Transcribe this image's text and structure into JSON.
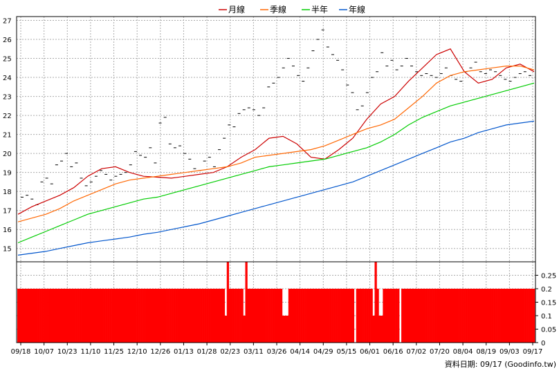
{
  "legend": [
    {
      "label": "月線",
      "color": "#cc0000"
    },
    {
      "label": "季線",
      "color": "#ff6600"
    },
    {
      "label": "半年",
      "color": "#00cc00"
    },
    {
      "label": "年線",
      "color": "#0055cc"
    }
  ],
  "footer": "資料日期: 09/17  (Goodinfo.tw)",
  "chart_data": [
    {
      "type": "line",
      "name": "price-panel",
      "x_ticks": [
        "09/18",
        "10/07",
        "10/23",
        "11/10",
        "11/25",
        "12/10",
        "12/26",
        "01/13",
        "01/28",
        "02/23",
        "03/11",
        "03/26",
        "04/14",
        "04/29",
        "05/15",
        "06/01",
        "06/16",
        "07/02",
        "07/20",
        "08/04",
        "08/19",
        "09/03",
        "09/17"
      ],
      "y_ticks": [
        15,
        16,
        17,
        18,
        19,
        20,
        21,
        22,
        23,
        24,
        25,
        26,
        27
      ],
      "ylim": [
        14.3,
        27.2
      ],
      "grid": true,
      "legend_position": "top-center",
      "series": [
        {
          "name": "月線",
          "color": "#cc0000",
          "values": [
            16.8,
            17.2,
            17.5,
            17.8,
            18.2,
            18.8,
            19.2,
            19.3,
            19.0,
            18.8,
            18.75,
            18.7,
            18.8,
            18.9,
            19.0,
            19.3,
            19.8,
            20.2,
            20.8,
            20.9,
            20.5,
            19.8,
            19.7,
            20.2,
            20.8,
            21.8,
            22.6,
            23.0,
            23.8,
            24.5,
            25.2,
            25.5,
            24.3,
            23.7,
            23.9,
            24.5,
            24.7,
            24.3
          ]
        },
        {
          "name": "季線",
          "color": "#ff6600",
          "values": [
            16.4,
            16.6,
            16.8,
            17.1,
            17.5,
            17.8,
            18.1,
            18.4,
            18.6,
            18.7,
            18.8,
            18.9,
            19.0,
            19.1,
            19.2,
            19.3,
            19.5,
            19.8,
            19.9,
            20.0,
            20.1,
            20.2,
            20.4,
            20.7,
            21.0,
            21.3,
            21.5,
            21.8,
            22.4,
            23.0,
            23.7,
            24.1,
            24.3,
            24.4,
            24.5,
            24.6,
            24.6,
            24.4
          ]
        },
        {
          "name": "半年",
          "color": "#00cc00",
          "values": [
            15.3,
            15.6,
            15.9,
            16.2,
            16.5,
            16.8,
            17.0,
            17.2,
            17.4,
            17.6,
            17.7,
            17.9,
            18.1,
            18.3,
            18.5,
            18.7,
            18.9,
            19.1,
            19.3,
            19.4,
            19.5,
            19.6,
            19.7,
            19.9,
            20.1,
            20.3,
            20.6,
            21.0,
            21.5,
            21.9,
            22.2,
            22.5,
            22.7,
            22.9,
            23.1,
            23.3,
            23.5,
            23.7
          ]
        },
        {
          "name": "年線",
          "color": "#0055cc",
          "values": [
            14.65,
            14.75,
            14.85,
            15.0,
            15.15,
            15.3,
            15.4,
            15.5,
            15.6,
            15.75,
            15.85,
            16.0,
            16.15,
            16.3,
            16.5,
            16.7,
            16.9,
            17.1,
            17.3,
            17.5,
            17.7,
            17.9,
            18.1,
            18.3,
            18.5,
            18.8,
            19.1,
            19.4,
            19.7,
            20.0,
            20.3,
            20.6,
            20.8,
            21.1,
            21.3,
            21.5,
            21.6,
            21.7
          ]
        }
      ],
      "price_marks": [
        17.7,
        17.8,
        17.6,
        17.3,
        18.5,
        18.7,
        18.4,
        19.4,
        19.6,
        20.0,
        19.3,
        19.5,
        18.7,
        18.3,
        18.5,
        18.8,
        19.1,
        18.9,
        18.6,
        18.8,
        18.9,
        19.0,
        19.4,
        20.1,
        19.9,
        19.8,
        20.3,
        19.5,
        21.6,
        21.9,
        20.5,
        20.3,
        20.4,
        20.0,
        19.7,
        19.2,
        19.1,
        19.6,
        19.8,
        19.3,
        20.2,
        20.8,
        21.5,
        21.4,
        22.1,
        22.3,
        22.4,
        22.3,
        22.0,
        22.4,
        23.5,
        23.7,
        24.0,
        24.5,
        25.0,
        24.6,
        24.1,
        23.8,
        24.5,
        25.4,
        26.0,
        26.5,
        25.6,
        25.2,
        24.9,
        24.4,
        23.6,
        23.2,
        22.3,
        22.5,
        23.2,
        24.0,
        24.3,
        25.3,
        24.6,
        24.9,
        24.4,
        24.6,
        25.0,
        24.6,
        24.3,
        24.1,
        24.2,
        24.1,
        24.0,
        24.2,
        24.5,
        24.1,
        23.9,
        23.8,
        24.3,
        24.5,
        24.8,
        24.3,
        24.2,
        24.4,
        24.3,
        24.1,
        23.9,
        23.8,
        24.0,
        24.2,
        24.3,
        24.1
      ]
    },
    {
      "type": "bar",
      "name": "volume-panel",
      "y_ticks": [
        "0",
        "0.05",
        "0.1",
        "0.15",
        "0.2",
        "0.25"
      ],
      "ylim": [
        0,
        0.3
      ],
      "values": [
        0.2,
        0.2,
        0.2,
        0.2,
        0.2,
        0.2,
        0.2,
        0.2,
        0.2,
        0.2,
        0.2,
        0.2,
        0.2,
        0.2,
        0.2,
        0.2,
        0.2,
        0.2,
        0.2,
        0.2,
        0.2,
        0.2,
        0.2,
        0.2,
        0.2,
        0.2,
        0.2,
        0.2,
        0.2,
        0.2,
        0.2,
        0.2,
        0.2,
        0.2,
        0.2,
        0.2,
        0.2,
        0.2,
        0.2,
        0.2,
        0.2,
        0.2,
        0.2,
        0.2,
        0.2,
        0.2,
        0.2,
        0.2,
        0.2,
        0.2,
        0.2,
        0.2,
        0.2,
        0.2,
        0.2,
        0.2,
        0.2,
        0.2,
        0.2,
        0.2,
        0.2,
        0.2,
        0.2,
        0.2,
        0.2,
        0.2,
        0.2,
        0.2,
        0.2,
        0.2,
        0.2,
        0.2,
        0.2,
        0.2,
        0.2,
        0.2,
        0.2,
        0.2,
        0.2,
        0.2,
        0.2,
        0.2,
        0.2,
        0.2,
        0.2,
        0.2,
        0.2,
        0.2,
        0.2,
        0.2,
        0.2,
        0.2,
        0.2,
        0.2,
        0.2,
        0.2,
        0.2,
        0.2,
        0.2,
        0.2,
        0.2,
        0.1,
        0.3,
        0.2,
        0.2,
        0.2,
        0.2,
        0.2,
        0.2,
        0.2,
        0.1,
        0.3,
        0.2,
        0.2,
        0.2,
        0.2,
        0.2,
        0.2,
        0.2,
        0.2,
        0.2,
        0.2,
        0.2,
        0.2,
        0.2,
        0.2,
        0.2,
        0.2,
        0.2,
        0.1,
        0.1,
        0.1,
        0.2,
        0.2,
        0.2,
        0.2,
        0.2,
        0.2,
        0.2,
        0.2,
        0.2,
        0.2,
        0.2,
        0.2,
        0.2,
        0.2,
        0.2,
        0.2,
        0.2,
        0.2,
        0.2,
        0.2,
        0.2,
        0.2,
        0.2,
        0.2,
        0.2,
        0.2,
        0.2,
        0.2,
        0.2,
        0.2,
        0.2,
        0.2,
        0.0,
        0.2,
        0.2,
        0.2,
        0.2,
        0.2,
        0.2,
        0.2,
        0.2,
        0.1,
        0.3,
        0.2,
        0.1,
        0.1,
        0.2,
        0.2,
        0.2,
        0.2,
        0.2,
        0.2,
        0.2,
        0.2,
        0.0,
        0.2,
        0.2,
        0.2,
        0.2,
        0.2,
        0.2,
        0.2,
        0.2,
        0.2,
        0.2,
        0.2,
        0.2,
        0.2,
        0.2,
        0.2,
        0.2,
        0.2,
        0.2,
        0.2,
        0.2,
        0.2,
        0.2,
        0.2,
        0.2,
        0.2,
        0.2,
        0.2,
        0.2,
        0.2,
        0.2,
        0.2,
        0.2,
        0.2,
        0.2,
        0.2,
        0.2,
        0.2,
        0.2,
        0.2,
        0.2,
        0.2,
        0.2,
        0.2,
        0.2,
        0.2,
        0.2,
        0.2,
        0.2,
        0.2,
        0.2,
        0.2,
        0.2,
        0.2,
        0.2,
        0.2,
        0.2,
        0.2,
        0.2,
        0.2,
        0.2,
        0.2,
        0.2,
        0.2,
        0.2,
        0.2
      ]
    }
  ]
}
